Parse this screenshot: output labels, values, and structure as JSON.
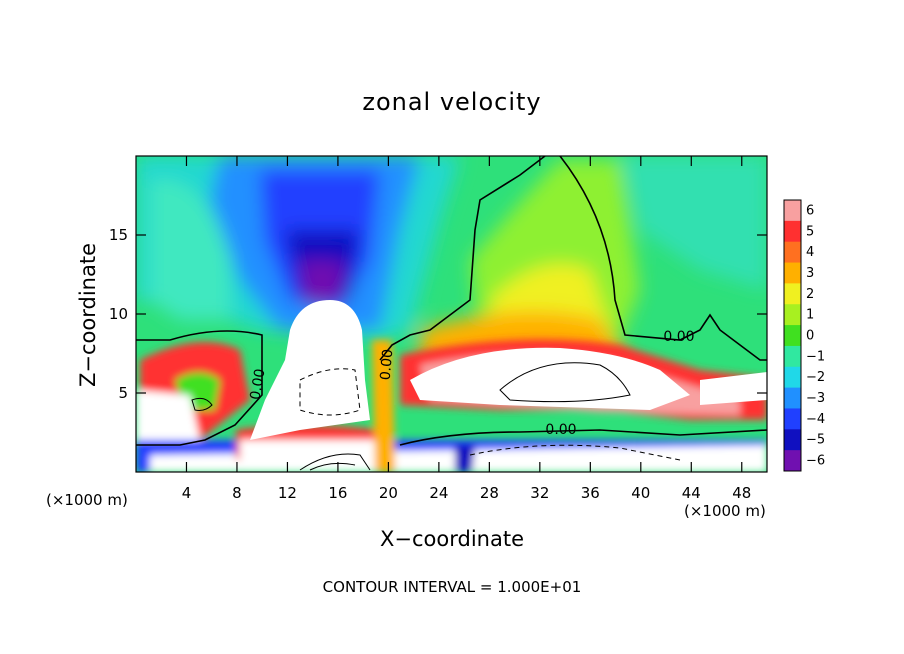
{
  "chart_data": {
    "type": "heatmap",
    "title": "zonal velocity",
    "xlabel": "X−coordinate",
    "ylabel": "Z−coordinate",
    "x_unit_left": "(×1000 m)",
    "x_unit_right": "(×1000 m)",
    "xlim": [
      0,
      50
    ],
    "ylim": [
      0,
      20
    ],
    "x_ticks": [
      4,
      8,
      12,
      16,
      20,
      24,
      28,
      32,
      36,
      40,
      44,
      48
    ],
    "y_ticks": [
      5,
      10,
      15
    ],
    "colorbar": {
      "levels": [
        6,
        5,
        4,
        3,
        2,
        1,
        0,
        -1,
        -2,
        -3,
        -4,
        -5,
        -6
      ],
      "labels": [
        "6",
        "5",
        "4",
        "3",
        "2",
        "1",
        "0",
        "−1",
        "−2",
        "−3",
        "−4",
        "−5",
        "−6"
      ],
      "colors": [
        "#f8a0a0",
        "#ff3030",
        "#ff7020",
        "#ffb000",
        "#f0f020",
        "#a8f020",
        "#40e020",
        "#30e8a0",
        "#20d8e8",
        "#2090ff",
        "#2040ff",
        "#1010c0",
        "#7010b0"
      ]
    },
    "contour_labels": [
      "0.00",
      "0.00",
      "0.00",
      "0.00"
    ],
    "contour_interval_text": "CONTOUR INTERVAL = 1.000E+01"
  }
}
